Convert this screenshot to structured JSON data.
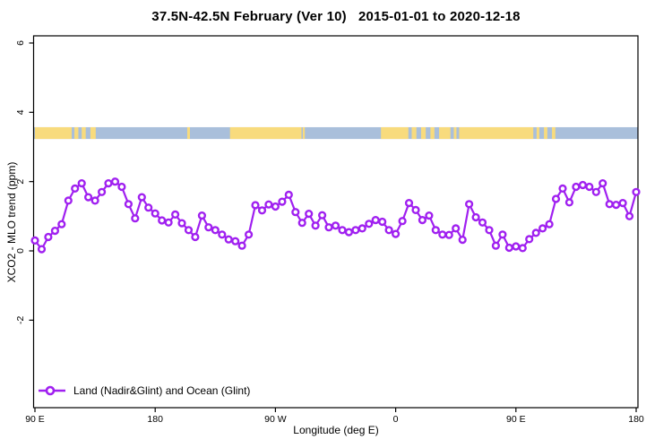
{
  "page": {
    "background": "#ffffff"
  },
  "chart_data": {
    "type": "line",
    "title": "37.5N-42.5N February (Ver 10)   2015-01-01 to 2020-12-18",
    "xlabel": "Longitude (deg E)",
    "ylabel": "XCO2 - MLO trend (ppm)",
    "x_axis": {
      "note": "longitude wraps: 90E eastward to 180 again",
      "min_deg": 90,
      "max_deg": 540,
      "ticks": [
        {
          "deg": 90,
          "label": "90 E"
        },
        {
          "deg": 180,
          "label": "180"
        },
        {
          "deg": 270,
          "label": "90 W"
        },
        {
          "deg": 360,
          "label": "0"
        },
        {
          "deg": 450,
          "label": "90 E"
        },
        {
          "deg": 540,
          "label": "180"
        }
      ]
    },
    "y_axis": {
      "min": -4.7,
      "max": 6.3,
      "ticks": [
        {
          "v": -2,
          "label": "-2"
        },
        {
          "v": 0,
          "label": "0"
        },
        {
          "v": 2,
          "label": "2"
        },
        {
          "v": 4,
          "label": "4"
        },
        {
          "v": 6,
          "label": "6"
        }
      ]
    },
    "legend": {
      "label": "Land (Nadir&Glint) and Ocean (Glint)",
      "position": "bottom-left"
    },
    "series": [
      {
        "name": "Land (Nadir&Glint) and Ocean (Glint)",
        "color": "#A020F0",
        "marker": "open-circle",
        "start_lon_deg": 90,
        "step_deg": 5,
        "values": [
          0.3,
          0.05,
          0.4,
          0.58,
          0.77,
          1.45,
          1.8,
          1.95,
          1.55,
          1.45,
          1.7,
          1.95,
          2.0,
          1.85,
          1.35,
          0.94,
          1.55,
          1.25,
          1.08,
          0.88,
          0.82,
          1.05,
          0.8,
          0.6,
          0.4,
          1.02,
          0.68,
          0.6,
          0.47,
          0.33,
          0.28,
          0.15,
          0.47,
          1.32,
          1.17,
          1.34,
          1.28,
          1.42,
          1.62,
          1.12,
          0.81,
          1.07,
          0.73,
          1.03,
          0.68,
          0.73,
          0.6,
          0.54,
          0.6,
          0.65,
          0.78,
          0.89,
          0.84,
          0.6,
          0.49,
          0.86,
          1.38,
          1.18,
          0.89,
          1.02,
          0.6,
          0.47,
          0.46,
          0.65,
          0.32,
          1.35,
          0.97,
          0.82,
          0.6,
          0.15,
          0.47,
          0.09,
          0.13,
          0.08,
          0.34,
          0.52,
          0.65,
          0.77,
          1.5,
          1.8,
          1.4,
          1.85,
          1.9,
          1.85,
          1.7,
          1.95,
          1.35,
          1.33,
          1.38,
          1.0,
          1.7
        ]
      }
    ],
    "map_band": {
      "meaning": "land (yellow) vs ocean (blue) strip along longitude",
      "value_center": 3.4,
      "value_halfwidth": 0.17,
      "ocean_color": "#A9BFDB",
      "land_color": "#F8DB7D",
      "land_segments_deg": [
        [
          90,
          117.5
        ],
        [
          119.5,
          122.5
        ],
        [
          125,
          128
        ],
        [
          131.5,
          135.5
        ],
        [
          204,
          206
        ],
        [
          236,
          289.5
        ],
        [
          290.5,
          292
        ],
        [
          349,
          369.5
        ],
        [
          372,
          375.5
        ],
        [
          379,
          382.5
        ],
        [
          386,
          389
        ],
        [
          392.5,
          401
        ],
        [
          403.5,
          405.5
        ],
        [
          407.5,
          463
        ],
        [
          465.5,
          467.5
        ],
        [
          471,
          473.5
        ],
        [
          477,
          479.5
        ]
      ]
    }
  }
}
